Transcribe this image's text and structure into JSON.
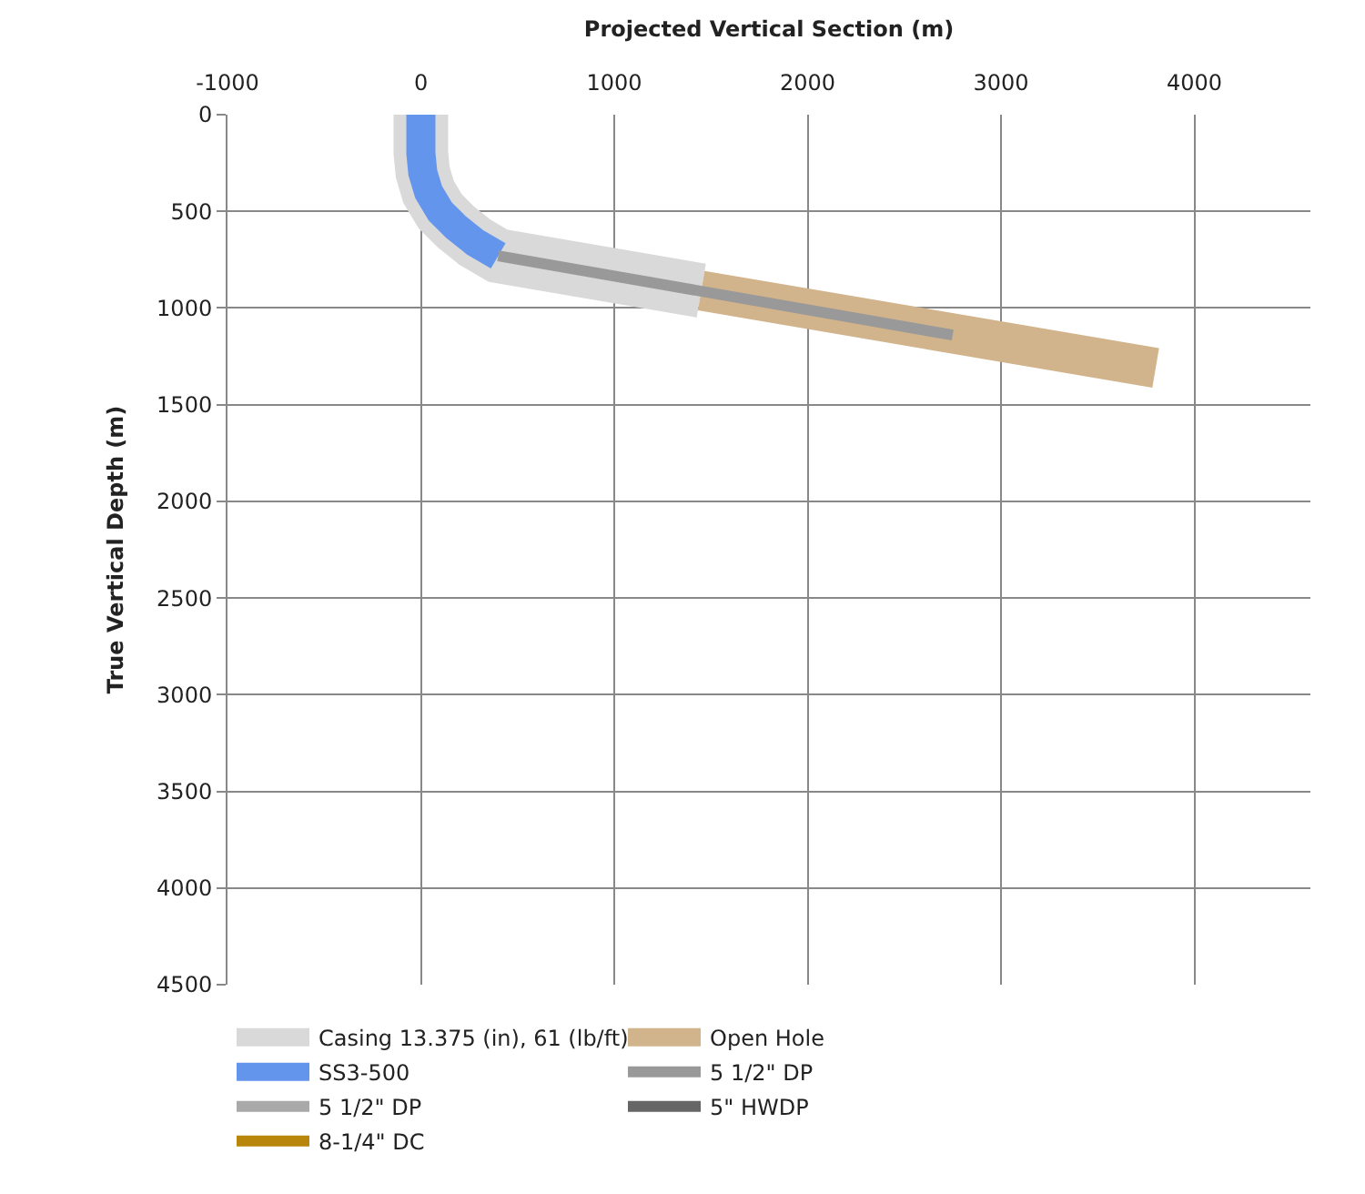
{
  "chart_data": {
    "type": "line",
    "xlabel": "Projected Vertical Section (m)",
    "ylabel": "True Vertical Depth (m)",
    "xlim": [
      -1000,
      4600
    ],
    "xticks": [
      -1000,
      0,
      1000,
      2000,
      3000,
      4000
    ],
    "ylim": [
      4500,
      0
    ],
    "yticks": [
      0,
      500,
      1000,
      1500,
      2000,
      2500,
      3000,
      3500,
      4000,
      4500
    ],
    "grid": true,
    "legend": "bottom",
    "marker": "none",
    "line_style": "solid",
    "series": [
      {
        "name": "Casing 13.375 (in), 61 (lb/ft)",
        "color": "#d9d9d9",
        "x": [
          0,
          0,
          10,
          40,
          100,
          180,
          280,
          400,
          1450
        ],
        "values": [
          0,
          200,
          300,
          400,
          500,
          580,
          660,
          730,
          910
        ]
      },
      {
        "name": "Open Hole",
        "color": "#d2b48c",
        "x": [
          1450,
          3800
        ],
        "values": [
          910,
          1310
        ]
      },
      {
        "name": "SS3-500",
        "color": "#6495ed",
        "x": [
          0,
          0,
          10,
          40,
          100,
          180,
          280,
          400
        ],
        "values": [
          0,
          200,
          300,
          400,
          500,
          580,
          660,
          730
        ]
      },
      {
        "name": "5 1/2\" DP",
        "color": "#999999",
        "x": [
          400,
          2750
        ],
        "values": [
          730,
          1140
        ]
      },
      {
        "name": "5 1/2\" DP",
        "color": "#a9a9a9"
      },
      {
        "name": "5\" HWDP",
        "color": "#666666"
      },
      {
        "name": "8-1/4\" DC",
        "color": "#b8860b"
      }
    ]
  }
}
